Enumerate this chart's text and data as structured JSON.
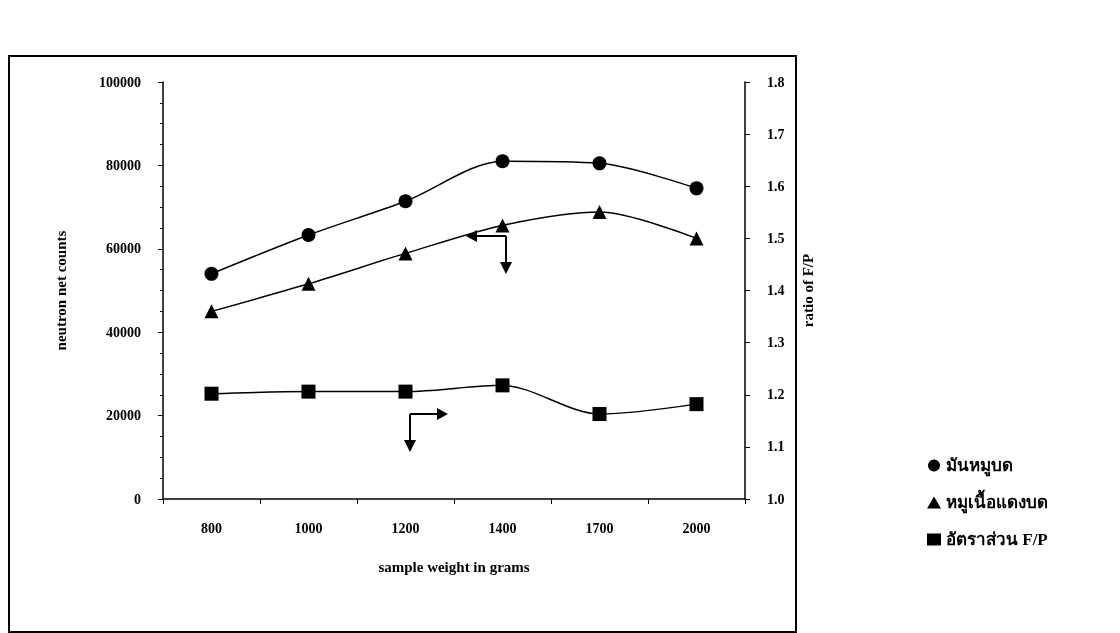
{
  "chart_data": {
    "type": "line",
    "xlabel": "sample weight in grams",
    "ylabel": "neutron net counts",
    "y2label": "ratio of F/P",
    "categories": [
      "800",
      "1000",
      "1200",
      "1400",
      "1700",
      "2000"
    ],
    "series": [
      {
        "name": "มันหมูบด",
        "color": "#000000",
        "marker": "circle",
        "values": [
          54000,
          63300,
          71400,
          81000,
          80500,
          74500
        ]
      },
      {
        "name": "หมูเนื้อแดงบด",
        "color": "#000000",
        "marker": "triangle",
        "values": [
          45000,
          51600,
          58900,
          65600,
          68800,
          62500
        ]
      },
      {
        "name": "อัตราส่วน F/P",
        "color": "#000000",
        "marker": "square",
        "axis": "y2",
        "values": [
          1.202,
          1.206,
          1.206,
          1.218,
          1.163,
          1.182
        ]
      }
    ],
    "ylim": [
      0,
      100000
    ],
    "yticks": [
      0,
      20000,
      40000,
      60000,
      80000,
      100000
    ],
    "y2lim": [
      1.0,
      1.8
    ],
    "y2ticks": [
      {
        "value": 1.0,
        "label": "1.0"
      },
      1.1,
      1.2,
      1.3,
      1.4,
      1.5,
      1.6,
      1.7,
      1.8
    ],
    "grid": false,
    "legend": "right",
    "line_style": "solid"
  }
}
